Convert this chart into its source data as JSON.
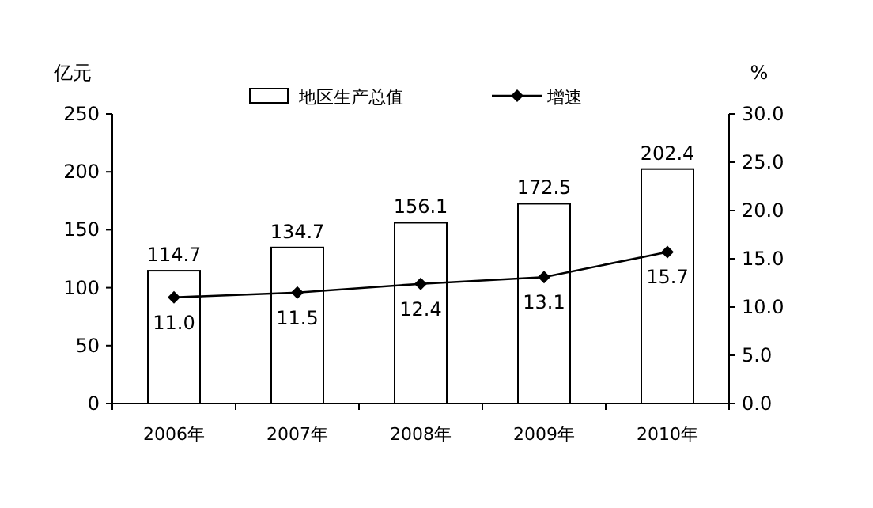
{
  "chart_data": {
    "type": "bar",
    "categories": [
      "2006年",
      "2007年",
      "2008年",
      "2009年",
      "2010年"
    ],
    "ylabel": "亿元",
    "y2label": "%",
    "legend": "top",
    "marker": "diamond",
    "series": [
      {
        "name": "地区生产总值",
        "color": "#ffffff",
        "values": [
          114.7,
          134.7,
          156.1,
          172.5,
          202.4
        ],
        "value_labels": [
          "114.7",
          "134.7",
          "156.1",
          "172.5",
          "202.4"
        ]
      },
      {
        "name": "增速",
        "type": "line",
        "axis": "y2",
        "color": "#000000",
        "values": [
          11.0,
          11.5,
          12.4,
          13.1,
          15.7
        ],
        "value_labels": [
          "11.0",
          "11.5",
          "12.4",
          "13.1",
          "15.7"
        ]
      }
    ],
    "ylim": [
      0,
      250
    ],
    "yticks": [
      0,
      50,
      100,
      150,
      200,
      250
    ],
    "y2lim": [
      0,
      30
    ],
    "y2ticks": [
      {
        "value": 0,
        "label": "0.0"
      },
      {
        "value": 5,
        "label": "5.0"
      },
      {
        "value": 10,
        "label": "10.0"
      },
      {
        "value": 15,
        "label": "15.0"
      },
      {
        "value": 20,
        "label": "20.0"
      },
      {
        "value": 25,
        "label": "25.0"
      },
      {
        "value": 30,
        "label": "30.0"
      }
    ]
  }
}
